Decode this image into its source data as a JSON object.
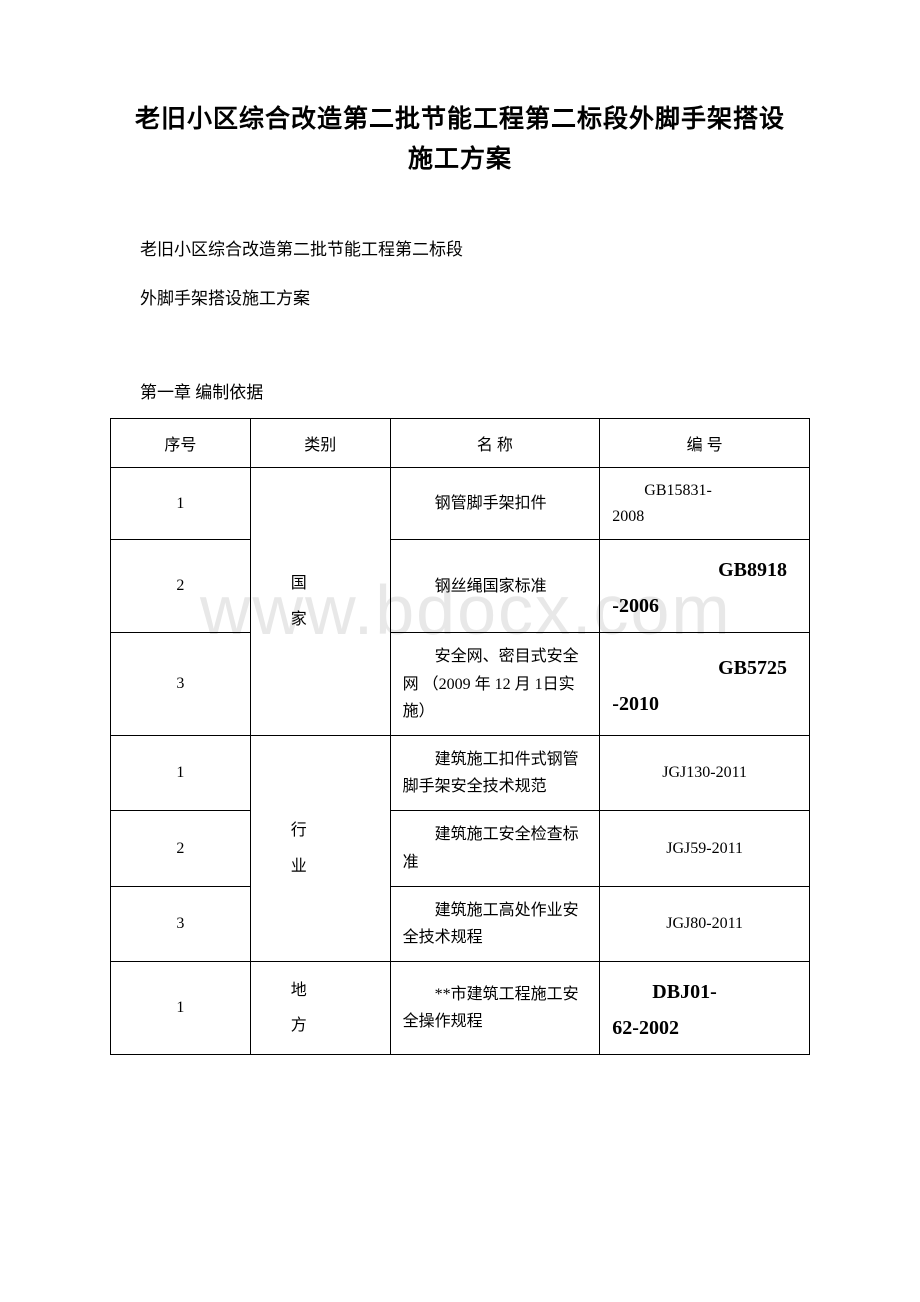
{
  "title_line1": "老旧小区综合改造第二批节能工程第二标段外脚手架搭设",
  "title_line2": "施工方案",
  "subtitle1": "老旧小区综合改造第二批节能工程第二标段",
  "subtitle2": "外脚手架搭设施工方案",
  "chapter": "第一章 编制依据",
  "watermark": "www.bdocx.com",
  "headers": {
    "seq": "序号",
    "category": "类别",
    "name": "名 称",
    "code": "编 号"
  },
  "categories": {
    "national": "国",
    "national2": "家",
    "industry": "行",
    "industry2": "业",
    "local": "地",
    "local2": "方"
  },
  "rows": [
    {
      "seq": "1",
      "name": "钢管脚手架扣件",
      "code_indent": "GB15831-",
      "code_rest": "2008",
      "code_bold": ""
    },
    {
      "seq": "2",
      "name": "钢丝绳国家标准",
      "code_bold1": "GB8918",
      "code_bold2": "-2006"
    },
    {
      "seq": "3",
      "name": "安全网、密目式安全网 （2009 年 12 月 1日实施）",
      "code_bold1": "GB5725",
      "code_bold2": "-2010"
    },
    {
      "seq": "1",
      "name": "建筑施工扣件式钢管脚手架安全技术规范",
      "code_plain": "JGJ130-2011"
    },
    {
      "seq": "2",
      "name": "建筑施工安全检查标准",
      "code_plain": "JGJ59-2011"
    },
    {
      "seq": "3",
      "name": "建筑施工高处作业安全技术规程",
      "code_plain": "JGJ80-2011"
    },
    {
      "seq": "1",
      "name": "**市建筑工程施工安全操作规程",
      "code_bold1": "DBJ01-",
      "code_bold2": "62-2002"
    }
  ]
}
